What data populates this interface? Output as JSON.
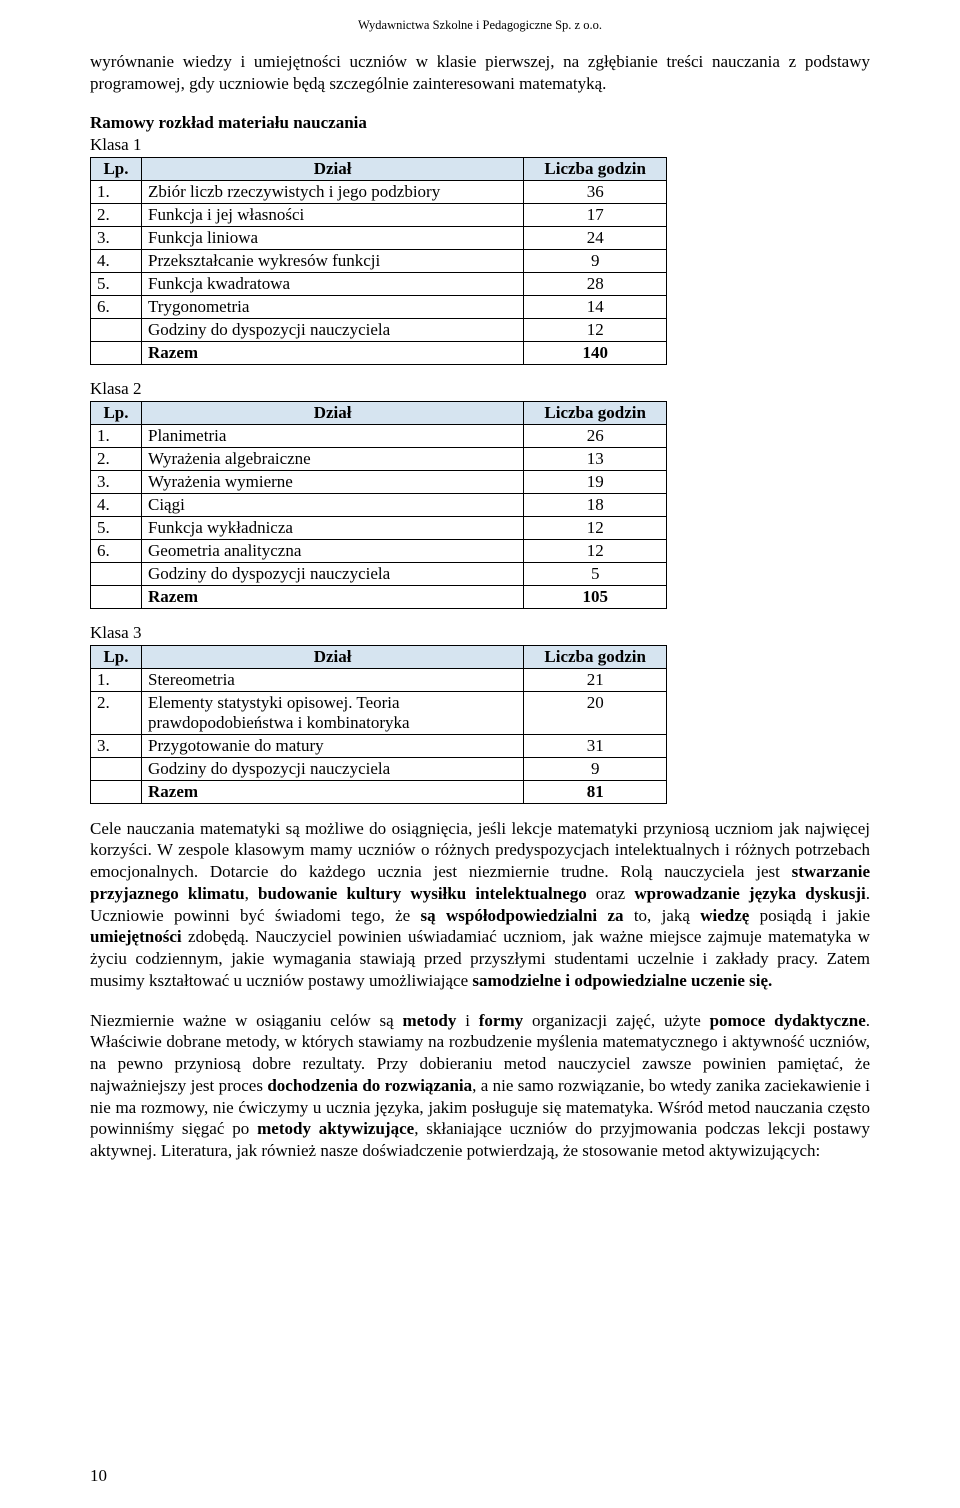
{
  "header": "Wydawnictwa Szkolne i Pedagogiczne Sp. z o.o.",
  "intro_paragraph": "wyrównanie wiedzy i umiejętności uczniów w klasie pierwszej, na zgłębianie treści nauczania z podstawy programowej, gdy uczniowie będą szczególnie zainteresowani matematyką.",
  "section_heading": "Ramowy rozkład materiału nauczania",
  "col_lp": "Lp.",
  "col_dzial": "Dział",
  "col_hours": "Liczba godzin",
  "summary_label": "Godziny do dyspozycji nauczyciela",
  "total_label": "Razem",
  "klasa1": {
    "label": "Klasa 1",
    "rows": [
      {
        "lp": "1.",
        "name": "Zbiór liczb rzeczywistych i jego podzbiory",
        "hours": "36"
      },
      {
        "lp": "2.",
        "name": "Funkcja i jej własności",
        "hours": "17"
      },
      {
        "lp": "3.",
        "name": "Funkcja liniowa",
        "hours": "24"
      },
      {
        "lp": "4.",
        "name": "Przekształcanie wykresów funkcji",
        "hours": "9"
      },
      {
        "lp": "5.",
        "name": "Funkcja kwadratowa",
        "hours": "28"
      },
      {
        "lp": "6.",
        "name": "Trygonometria",
        "hours": "14"
      }
    ],
    "teacher_hours": "12",
    "total": "140"
  },
  "klasa2": {
    "label": "Klasa 2",
    "rows": [
      {
        "lp": "1.",
        "name": "Planimetria",
        "hours": "26"
      },
      {
        "lp": "2.",
        "name": "Wyrażenia algebraiczne",
        "hours": "13"
      },
      {
        "lp": "3.",
        "name": "Wyrażenia wymierne",
        "hours": "19"
      },
      {
        "lp": "4.",
        "name": "Ciągi",
        "hours": "18"
      },
      {
        "lp": "5.",
        "name": "Funkcja wykładnicza",
        "hours": "12"
      },
      {
        "lp": "6.",
        "name": "Geometria analityczna",
        "hours": "12"
      }
    ],
    "teacher_hours": "5",
    "total": "105"
  },
  "klasa3": {
    "label": "Klasa 3",
    "rows": [
      {
        "lp": "1.",
        "name": "Stereometria",
        "hours": "21"
      },
      {
        "lp": "2.",
        "name": "Elementy statystyki opisowej. Teoria prawdopodobieństwa i kombinatoryka",
        "hours": "20"
      },
      {
        "lp": "3.",
        "name": "Przygotowanie do matury",
        "hours": "31"
      }
    ],
    "teacher_hours": "9",
    "total": "81"
  },
  "para2_parts": {
    "t0": "Cele nauczania matematyki są możliwe do osiągnięcia, jeśli lekcje matematyki przyniosą uczniom jak najwięcej korzyści. W zespole klasowym mamy uczniów o różnych predyspozycjach intelektualnych i różnych potrzebach emocjonalnych. Dotarcie do każdego ucznia jest niezmiernie trudne. Rolą nauczyciela jest ",
    "b0": "stwarzanie przyjaznego klimatu",
    "t1": ", ",
    "b1": "budowanie kultury wysiłku intelektualnego",
    "t2": " oraz ",
    "b2": "wprowadzanie języka dyskusji",
    "t3": ". Uczniowie powinni być świadomi tego, że ",
    "b3": "są współodpowiedzialni za",
    "t4": " to, jaką ",
    "b4": "wiedzę",
    "t5": " posiądą i jakie ",
    "b5": "umiejętności",
    "t6": " zdobędą. Nauczyciel powinien uświadamiać uczniom, jak ważne miejsce zajmuje matematyka w życiu codziennym, jakie wymagania stawiają przed przyszłymi studentami uczelnie i zakłady pracy. Zatem musimy kształtować u uczniów postawy umożliwiające ",
    "b6": "samodzielne i odpowiedzialne uczenie się."
  },
  "para3_parts": {
    "t0": "Niezmiernie ważne w osiąganiu celów są ",
    "b0": "metody",
    "t1": " i ",
    "b1": "formy",
    "t2": " organizacji zajęć, użyte ",
    "b2": "pomoce dydaktyczne",
    "t3": ". Właściwie dobrane metody, w których stawiamy na rozbudzenie myślenia matematycznego i aktywność uczniów, na pewno przyniosą dobre rezultaty. Przy dobieraniu metod nauczyciel zawsze powinien pamiętać, że najważniejszy jest proces ",
    "b3": "dochodzenia do rozwiązania",
    "t4": ", a nie samo rozwiązanie, bo wtedy zanika zaciekawienie i nie ma rozmowy, nie ćwiczymy u ucznia języka, jakim posługuje się matematyka. Wśród metod nauczania często powinniśmy sięgać po ",
    "b4": "metody aktywizujące",
    "t5": ", skłaniające uczniów do przyjmowania podczas lekcji postawy aktywnej. Literatura, jak również nasze doświadczenie potwierdzają, że stosowanie metod aktywizujących:"
  },
  "page_number": "10"
}
